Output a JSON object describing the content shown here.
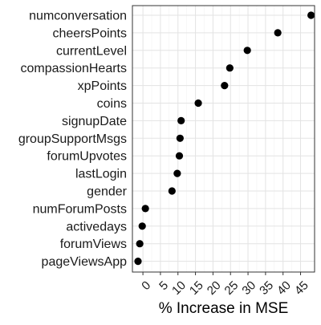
{
  "chart_data": {
    "type": "scatter",
    "orientation": "horizontal-dot-plot",
    "xlabel": "% Increase in MSE",
    "ylabel": "",
    "xlim": [
      -3,
      49
    ],
    "x_ticks": [
      0,
      5,
      10,
      15,
      20,
      25,
      30,
      35,
      40,
      45
    ],
    "x_tick_labels": [
      "0",
      "5",
      "10",
      "15",
      "20",
      "25",
      "30",
      "35",
      "40",
      "45"
    ],
    "x_tick_rotation": "angled",
    "grid": true,
    "legend": "none",
    "point_color": "#000000",
    "panel_border_color": "#333333",
    "categories": [
      "numconversation",
      "cheersPoints",
      "currentLevel",
      "compassionHearts",
      "xpPoints",
      "coins",
      "signupDate",
      "groupSupportMsgs",
      "forumUpvotes",
      "lastLogin",
      "gender",
      "numForumPosts",
      "activedays",
      "forumViews",
      "pageViewsApp"
    ],
    "values": [
      48.0,
      38.5,
      29.8,
      24.8,
      23.3,
      15.8,
      10.9,
      10.6,
      10.4,
      9.8,
      8.3,
      0.7,
      -0.2,
      -0.9,
      -1.4
    ]
  }
}
